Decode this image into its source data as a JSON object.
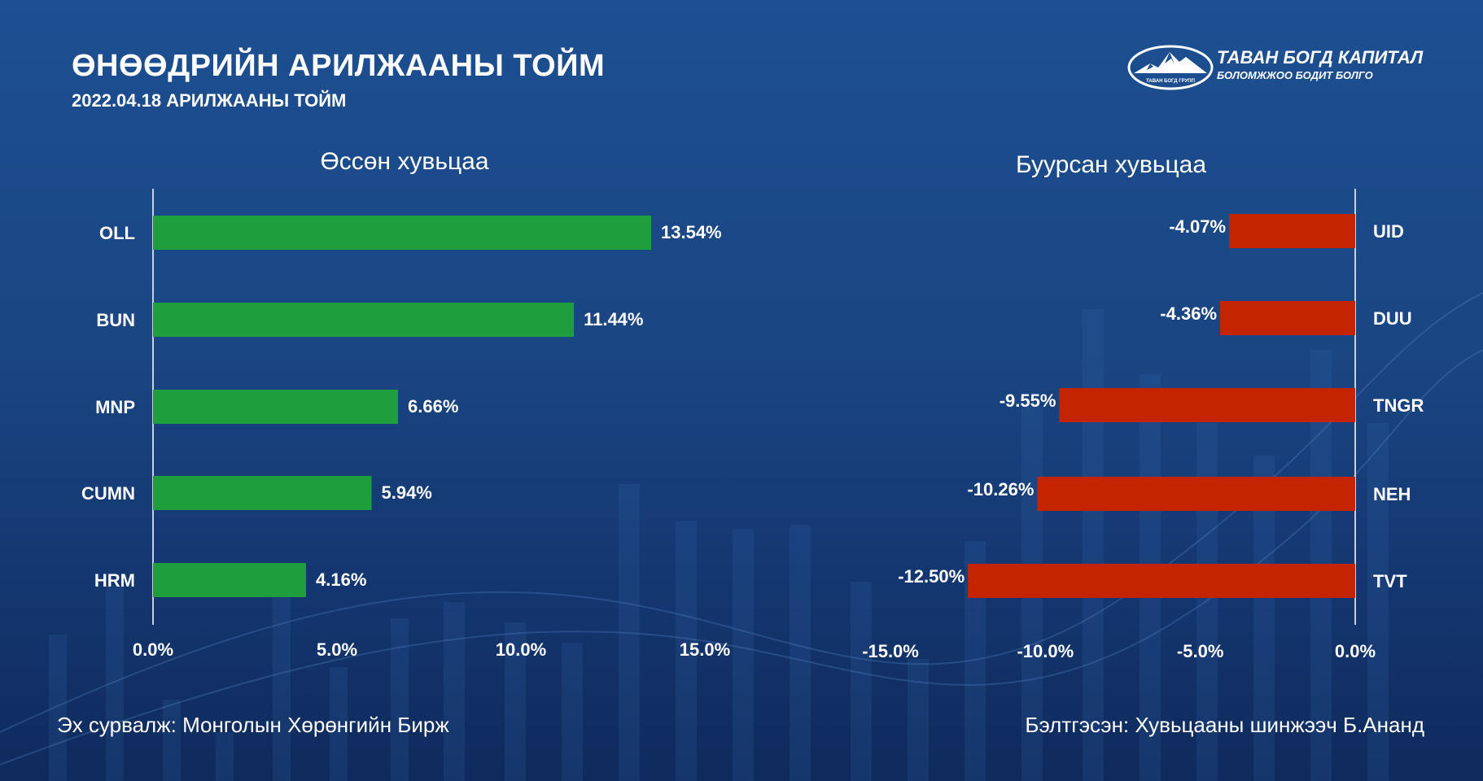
{
  "header": {
    "title": "ӨНӨӨДРИЙН АРИЛЖААНЫ ТОЙМ",
    "subtitle": "2022.04.18 АРИЛЖААНЫ ТОЙМ"
  },
  "logo": {
    "name": "ТАВАН БОГД КАПИТАЛ",
    "tagline": "БОЛОМЖЖОО БОДИТ БОЛГО",
    "mark_text": "ТАВАН БОГД ГРУПП"
  },
  "colors": {
    "up_bar": "#1e9e3c",
    "down_bar": "#c42500",
    "axis": "#ffffff"
  },
  "chart_data": [
    {
      "type": "bar",
      "orientation": "horizontal",
      "title": "Өссөн хувьцаа",
      "categories": [
        "OLL",
        "BUN",
        "MNP",
        "CUMN",
        "HRM"
      ],
      "values": [
        13.54,
        11.44,
        6.66,
        5.94,
        4.16
      ],
      "value_labels": [
        "13.54%",
        "11.44%",
        "6.66%",
        "5.94%",
        "4.16%"
      ],
      "xlim": [
        0,
        15
      ],
      "ticks": [
        0,
        5,
        10,
        15
      ],
      "tick_labels": [
        "0.0%",
        "5.0%",
        "10.0%",
        "15.0%"
      ],
      "category_side": "left",
      "color": "#1e9e3c"
    },
    {
      "type": "bar",
      "orientation": "horizontal",
      "title": "Буурсан хувьцаа",
      "categories": [
        "UID",
        "DUU",
        "TNGR",
        "NEH",
        "TVT"
      ],
      "values": [
        -4.07,
        -4.36,
        -9.55,
        -10.26,
        -12.5
      ],
      "value_labels": [
        "-4.07%",
        "-4.36%",
        "-9.55%",
        "-10.26%",
        "-12.50%"
      ],
      "xlim": [
        -15,
        0
      ],
      "ticks": [
        -15,
        -10,
        -5,
        0
      ],
      "tick_labels": [
        "-15.0%",
        "-10.0%",
        "-5.0%",
        "0.0%"
      ],
      "category_side": "right",
      "color": "#c42500"
    }
  ],
  "footer": {
    "source": "Эх сурвалж: Монголын Хөрөнгийн Бирж",
    "prepared_by": "Бэлтгэсэн: Хувьцааны шинжээч Б.Ананд"
  }
}
